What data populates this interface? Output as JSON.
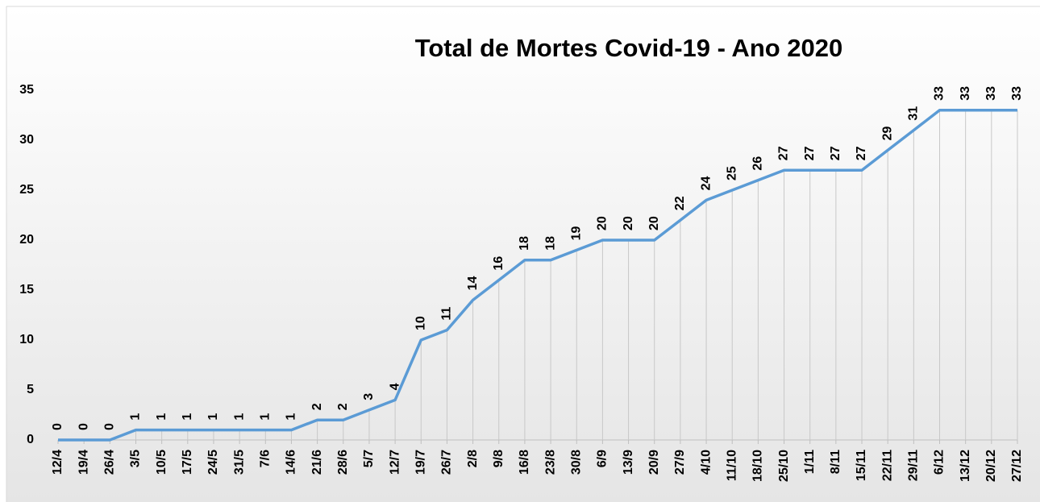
{
  "chart_data": {
    "type": "line",
    "title": "Total de Mortes Covid-19 - Ano 2020",
    "categories": [
      "12/4",
      "19/4",
      "26/4",
      "3/5",
      "10/5",
      "17/5",
      "24/5",
      "31/5",
      "7/6",
      "14/6",
      "21/6",
      "28/6",
      "5/7",
      "12/7",
      "19/7",
      "26/7",
      "2/8",
      "9/8",
      "16/8",
      "23/8",
      "30/8",
      "6/9",
      "13/9",
      "20/9",
      "27/9",
      "4/10",
      "11/10",
      "18/10",
      "25/10",
      "1/11",
      "8/11",
      "15/11",
      "22/11",
      "29/11",
      "6/12",
      "13/12",
      "20/12",
      "27/12"
    ],
    "series": [
      {
        "name": "Total de Mortes",
        "color": "#5b9bd5",
        "values": [
          0,
          0,
          0,
          1,
          1,
          1,
          1,
          1,
          1,
          1,
          2,
          2,
          3,
          4,
          10,
          11,
          14,
          16,
          18,
          18,
          19,
          20,
          20,
          20,
          22,
          24,
          25,
          26,
          27,
          27,
          27,
          27,
          29,
          31,
          33,
          33,
          33,
          33
        ]
      }
    ],
    "ylim": [
      0,
      35
    ],
    "yticks": [
      0,
      5,
      10,
      15,
      20,
      25,
      30,
      35
    ],
    "grid": false,
    "drop_lines": true
  }
}
